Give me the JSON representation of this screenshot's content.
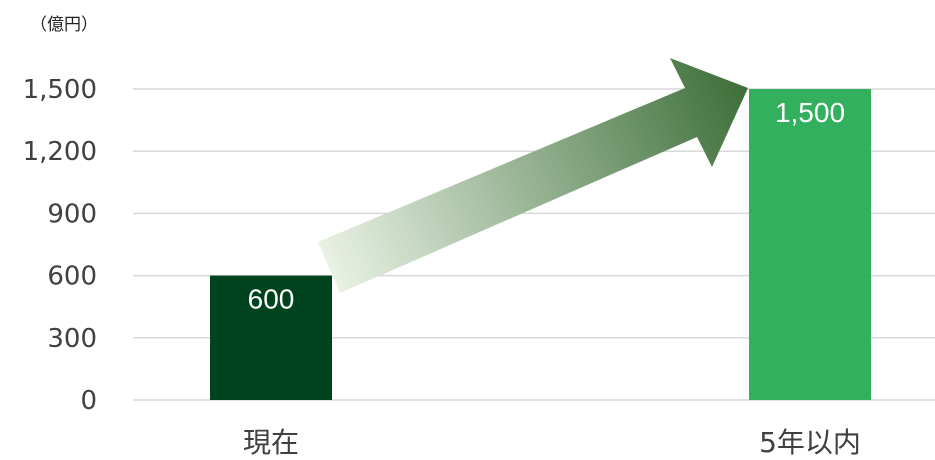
{
  "chart_data": {
    "type": "bar",
    "categories": [
      "現在",
      "5年以内"
    ],
    "values": [
      600,
      1500
    ],
    "data_labels": [
      "600",
      "1,500"
    ],
    "unit_label": "（億円）",
    "yticks": [
      0,
      300,
      600,
      900,
      1200,
      1500
    ],
    "ytick_labels": [
      "0",
      "300",
      "600",
      "900",
      "1,200",
      "1,500"
    ],
    "ylim": [
      0,
      1500
    ],
    "grid": true,
    "legend": "none",
    "colors": {
      "bar_current": "#00441f",
      "bar_future": "#32b05d",
      "grid": "#d9d9d9",
      "arrow_start": "#e8f1e4",
      "arrow_end": "#3e6f3a"
    },
    "annotation": "growth-arrow"
  }
}
